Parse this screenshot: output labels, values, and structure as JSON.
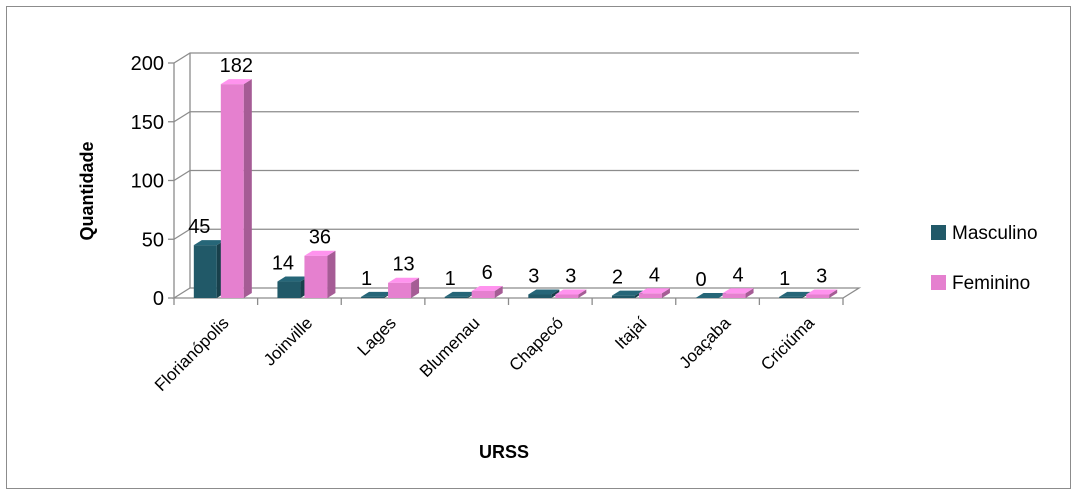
{
  "chart_data": {
    "type": "bar",
    "title": "",
    "xlabel": "URSS",
    "ylabel": "Quantidade",
    "ylim": [
      0,
      200
    ],
    "yticks": [
      0,
      50,
      100,
      150,
      200
    ],
    "categories": [
      "Florianópolis",
      "Joinville",
      "Lages",
      "Blumenau",
      "Chapecó",
      "Itajaí",
      "Joaçaba",
      "Criciúma"
    ],
    "series": [
      {
        "name": "Masculino",
        "values": [
          45,
          14,
          1,
          1,
          3,
          2,
          0,
          1
        ],
        "color": "#215968"
      },
      {
        "name": "Feminino",
        "values": [
          182,
          36,
          13,
          6,
          3,
          4,
          4,
          3
        ],
        "color": "#e580cf"
      }
    ],
    "grid": true,
    "legend_position": "right",
    "style": "3d-clustered-column"
  }
}
